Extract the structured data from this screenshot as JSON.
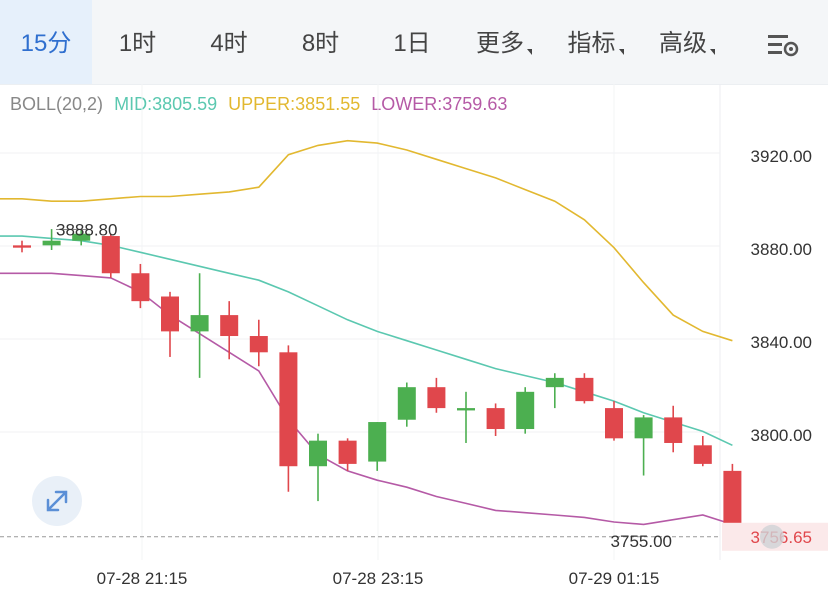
{
  "tabs": [
    {
      "label": "15分",
      "active": true
    },
    {
      "label": "1时",
      "active": false
    },
    {
      "label": "4时",
      "active": false
    },
    {
      "label": "8时",
      "active": false
    },
    {
      "label": "1日",
      "active": false
    },
    {
      "label": "更多",
      "active": false,
      "dropdown": true
    },
    {
      "label": "指标",
      "active": false,
      "dropdown": true
    },
    {
      "label": "高级",
      "active": false,
      "dropdown": true
    }
  ],
  "settings_icon": "chart-settings-icon",
  "indicator": {
    "name": "BOLL(20,2)",
    "mid_label": "MID:3805.59",
    "upper_label": "UPPER:3851.55",
    "lower_label": "LOWER:3759.63"
  },
  "colors": {
    "up": "#4caf50",
    "down": "#e0474c",
    "mid": "#5bc8b0",
    "upper": "#e2b830",
    "lower": "#b55aa6",
    "active_tab": "#2f6fcf"
  },
  "chart_data": {
    "type": "candlestick",
    "y_ticks": [
      "3920.00",
      "3880.00",
      "3840.00",
      "3800.00"
    ],
    "x_ticks": [
      "07-28 21:15",
      "07-28 23:15",
      "07-29 01:15"
    ],
    "ylim": [
      3745,
      3960
    ],
    "current_price_label": "3756.65",
    "current_price": 3756.65,
    "high_marker": "3888.80",
    "high_value": 3888.8,
    "low_marker": "3755.00",
    "low_value": 3755.0,
    "candles": [
      {
        "o": 3882,
        "c": 3881,
        "h": 3884,
        "l": 3879
      },
      {
        "o": 3882,
        "c": 3884,
        "h": 3889,
        "l": 3880
      },
      {
        "o": 3884,
        "c": 3887,
        "h": 3889,
        "l": 3882
      },
      {
        "o": 3886,
        "c": 3870,
        "h": 3887,
        "l": 3868
      },
      {
        "o": 3870,
        "c": 3858,
        "h": 3874,
        "l": 3855
      },
      {
        "o": 3860,
        "c": 3845,
        "h": 3862,
        "l": 3834
      },
      {
        "o": 3845,
        "c": 3852,
        "h": 3870,
        "l": 3825
      },
      {
        "o": 3852,
        "c": 3843,
        "h": 3858,
        "l": 3833
      },
      {
        "o": 3843,
        "c": 3836,
        "h": 3850,
        "l": 3830
      },
      {
        "o": 3836,
        "c": 3787,
        "h": 3839,
        "l": 3776
      },
      {
        "o": 3787,
        "c": 3798,
        "h": 3801,
        "l": 3772
      },
      {
        "o": 3798,
        "c": 3788,
        "h": 3799,
        "l": 3785
      },
      {
        "o": 3789,
        "c": 3806,
        "h": 3806,
        "l": 3785
      },
      {
        "o": 3807,
        "c": 3821,
        "h": 3823,
        "l": 3804
      },
      {
        "o": 3821,
        "c": 3812,
        "h": 3825,
        "l": 3810
      },
      {
        "o": 3811,
        "c": 3812,
        "h": 3819,
        "l": 3797
      },
      {
        "o": 3812,
        "c": 3803,
        "h": 3814,
        "l": 3800
      },
      {
        "o": 3803,
        "c": 3819,
        "h": 3821,
        "l": 3801
      },
      {
        "o": 3821,
        "c": 3825,
        "h": 3827,
        "l": 3812
      },
      {
        "o": 3825,
        "c": 3815,
        "h": 3827,
        "l": 3814
      },
      {
        "o": 3812,
        "c": 3799,
        "h": 3815,
        "l": 3798
      },
      {
        "o": 3799,
        "c": 3808,
        "h": 3809,
        "l": 3783
      },
      {
        "o": 3808,
        "c": 3797,
        "h": 3813,
        "l": 3793
      },
      {
        "o": 3796,
        "c": 3788,
        "h": 3800,
        "l": 3787
      },
      {
        "o": 3785,
        "c": 3756.65,
        "h": 3788,
        "l": 3755
      }
    ],
    "upper_band": [
      3902,
      3901,
      3901,
      3902,
      3903,
      3903,
      3904,
      3905,
      3907,
      3921,
      3925,
      3927,
      3926,
      3923,
      3919,
      3915,
      3911,
      3906,
      3901,
      3893,
      3881,
      3866,
      3852,
      3845,
      3841
    ],
    "mid_band": [
      3886,
      3885,
      3884,
      3882,
      3879,
      3876,
      3873,
      3870,
      3867,
      3862,
      3856,
      3850,
      3845,
      3841,
      3837,
      3833,
      3829,
      3826,
      3823,
      3819,
      3815,
      3810,
      3806,
      3802,
      3796
    ],
    "lower_band": [
      3870,
      3870,
      3869,
      3868,
      3862,
      3852,
      3844,
      3836,
      3828,
      3807,
      3792,
      3785,
      3781,
      3778,
      3774,
      3771,
      3768,
      3767,
      3766,
      3765,
      3763,
      3762,
      3764,
      3766,
      3762
    ]
  }
}
